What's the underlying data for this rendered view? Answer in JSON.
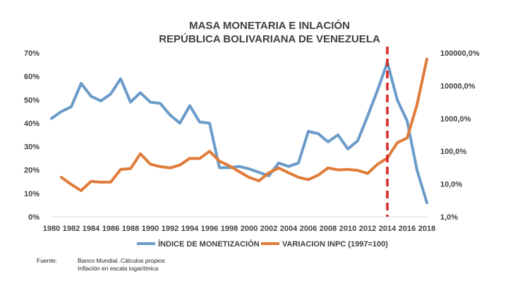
{
  "chart_data": {
    "type": "line",
    "title": "MASA MONETARIA E INLACIÓN",
    "subtitle": "REPÚBLICA BOLIVARIANA DE VENEZUELA",
    "x": [
      1980,
      1981,
      1982,
      1983,
      1984,
      1985,
      1986,
      1987,
      1988,
      1989,
      1990,
      1991,
      1992,
      1993,
      1994,
      1995,
      1996,
      1997,
      1998,
      1999,
      2000,
      2001,
      2002,
      2003,
      2004,
      2005,
      2006,
      2007,
      2008,
      2009,
      2010,
      2011,
      2012,
      2013,
      2014,
      2015,
      2016,
      2017,
      2018
    ],
    "x_tick_labels": [
      "1980",
      "1982",
      "1984",
      "1986",
      "1988",
      "1990",
      "1992",
      "1994",
      "1996",
      "1998",
      "2000",
      "2002",
      "2004",
      "2006",
      "2008",
      "2010",
      "2012",
      "2014",
      "2016",
      "2018"
    ],
    "left_axis": {
      "ylim": [
        0,
        70
      ],
      "tick_labels": [
        "0%",
        "10%",
        "20%",
        "30%",
        "40%",
        "50%",
        "60%",
        "70%"
      ]
    },
    "right_axis": {
      "scale": "log",
      "ylim": [
        1,
        100000
      ],
      "tick_labels": [
        "1,0%",
        "10,0%",
        "100,0%",
        "1000,0%",
        "10000,0%",
        "100000,0%"
      ]
    },
    "series": [
      {
        "name": "ÍNDICE DE MONETIZACIÓN",
        "axis": "left",
        "color": "#6A9BC9",
        "x": [
          1980,
          1981,
          1982,
          1983,
          1984,
          1985,
          1986,
          1987,
          1988,
          1989,
          1990,
          1991,
          1992,
          1993,
          1994,
          1995,
          1996,
          1997,
          1998,
          1999,
          2000,
          2001,
          2002,
          2003,
          2004,
          2005,
          2006,
          2007,
          2008,
          2009,
          2010,
          2011,
          2012,
          2013,
          2014,
          2015,
          2016,
          2017,
          2018
        ],
        "values": [
          42,
          45,
          47,
          57,
          51.5,
          49.5,
          52.5,
          59,
          49,
          53,
          49,
          48.5,
          43.5,
          40,
          47.5,
          40.5,
          40,
          21,
          21,
          21.5,
          20.5,
          19,
          17.5,
          23,
          21.5,
          23,
          36.5,
          35.5,
          32,
          35,
          29,
          32.5,
          43,
          54,
          66,
          50,
          41,
          20,
          6
        ]
      },
      {
        "name": "VARIACION INPC (1997=100)",
        "axis": "right",
        "color": "#E07B39",
        "x": [
          1981,
          1982,
          1983,
          1984,
          1985,
          1986,
          1987,
          1988,
          1989,
          1990,
          1991,
          1992,
          1993,
          1994,
          1995,
          1996,
          1997,
          1998,
          1999,
          2000,
          2001,
          2002,
          2003,
          2004,
          2005,
          2006,
          2007,
          2008,
          2009,
          2010,
          2011,
          2012,
          2013,
          2014,
          2015,
          2016,
          2017,
          2018
        ],
        "values": [
          16,
          9.7,
          6.3,
          12,
          11.4,
          11.5,
          28,
          29.5,
          84,
          40.6,
          34,
          31,
          38,
          61,
          60,
          100,
          50,
          36,
          24,
          16,
          12.5,
          22,
          31,
          22,
          16,
          13.7,
          18.7,
          31,
          27,
          28,
          26,
          21,
          40,
          62,
          181,
          254,
          2600,
          65000
        ]
      }
    ],
    "annotations": [
      {
        "type": "vertical-dashed-line",
        "x": 2014,
        "color": "#D62728"
      }
    ],
    "legend": {
      "position": "bottom"
    }
  },
  "footer": {
    "source_label": "Fuente:",
    "lines": [
      "Banco Mundial. Cálculos propios",
      "Inflación en escala logarítmica"
    ]
  }
}
